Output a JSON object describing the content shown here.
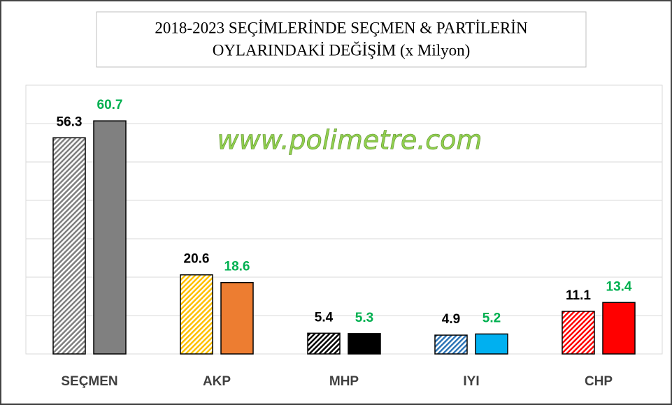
{
  "chart_data": {
    "type": "bar",
    "title": [
      "2018-2023 SEÇİMLERİNDE  SEÇMEN & PARTİLERİN",
      "OYLARINDAKİ  DEĞİŞİM (x Milyon)"
    ],
    "watermark": "www.polimetre.com",
    "categories": [
      "SEÇMEN",
      "AKP",
      "MHP",
      "IYI",
      "CHP"
    ],
    "series": [
      {
        "values": [
          56.3,
          20.6,
          5.4,
          4.9,
          11.1
        ],
        "colors": [
          "#7f7f7f",
          "#ffc000",
          "#000000",
          "#2e75b6",
          "#ff0000"
        ],
        "label_color": "#000000",
        "pattern": "hatch"
      },
      {
        "values": [
          60.7,
          18.6,
          5.3,
          5.2,
          13.4
        ],
        "colors": [
          "#808080",
          "#ed7d31",
          "#000000",
          "#00b0f0",
          "#ff0000"
        ],
        "label_color": "#00b050",
        "pattern": "solid"
      }
    ],
    "ylim": [
      0,
      70
    ],
    "yticks": [
      0,
      10,
      20,
      30,
      40,
      50,
      60,
      70
    ],
    "grid": true
  }
}
